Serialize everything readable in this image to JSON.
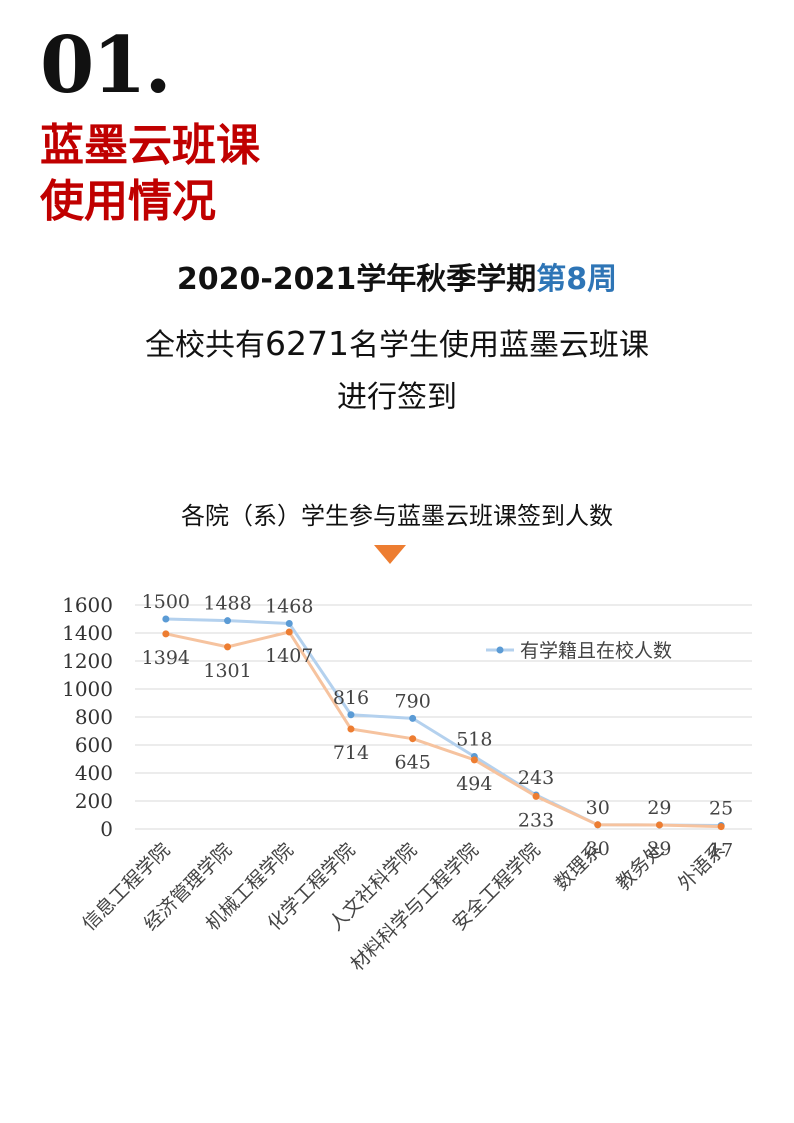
{
  "header": {
    "number": "01.",
    "title_line1": "蓝墨云班课",
    "title_line2": "使用情况"
  },
  "headline": {
    "prefix": "2020-2021学年秋季学期",
    "accent": "第8周",
    "accent_color": "#2e75b6"
  },
  "summary": {
    "line1_prefix": "全校共有",
    "count": "6271",
    "line1_suffix": "名学生使用蓝墨云班课",
    "line2": "进行签到"
  },
  "chart_heading": "各院（系）学生参与蓝墨云班课签到人数",
  "colors": {
    "title_red": "#c00000",
    "pointer": "#ed7d31",
    "series_enrolled_line": "#b4d1ee",
    "series_enrolled_marker": "#5b9bd5",
    "series_checkin_line": "#f6c39f",
    "series_checkin_marker": "#ed7d31"
  },
  "chart_data": {
    "type": "line",
    "title": "",
    "xlabel": "",
    "ylabel": "",
    "ylim": [
      0,
      1600
    ],
    "yticks": [
      0,
      200,
      400,
      600,
      800,
      1000,
      1200,
      1400,
      1600
    ],
    "grid": true,
    "legend_position": "top-right",
    "categories": [
      "信息工程学院",
      "经济管理学院",
      "机械工程学院",
      "化学工程学院",
      "人文社科学院",
      "材料科学与工程学院",
      "安全工程学院",
      "数理系",
      "教务处",
      "外语系"
    ],
    "series": [
      {
        "name": "有学籍且在校人数",
        "values": [
          1500,
          1488,
          1468,
          816,
          790,
          518,
          243,
          30,
          29,
          25
        ]
      },
      {
        "values": [
          1394,
          1301,
          1407,
          714,
          645,
          494,
          233,
          30,
          29,
          17
        ]
      }
    ]
  }
}
